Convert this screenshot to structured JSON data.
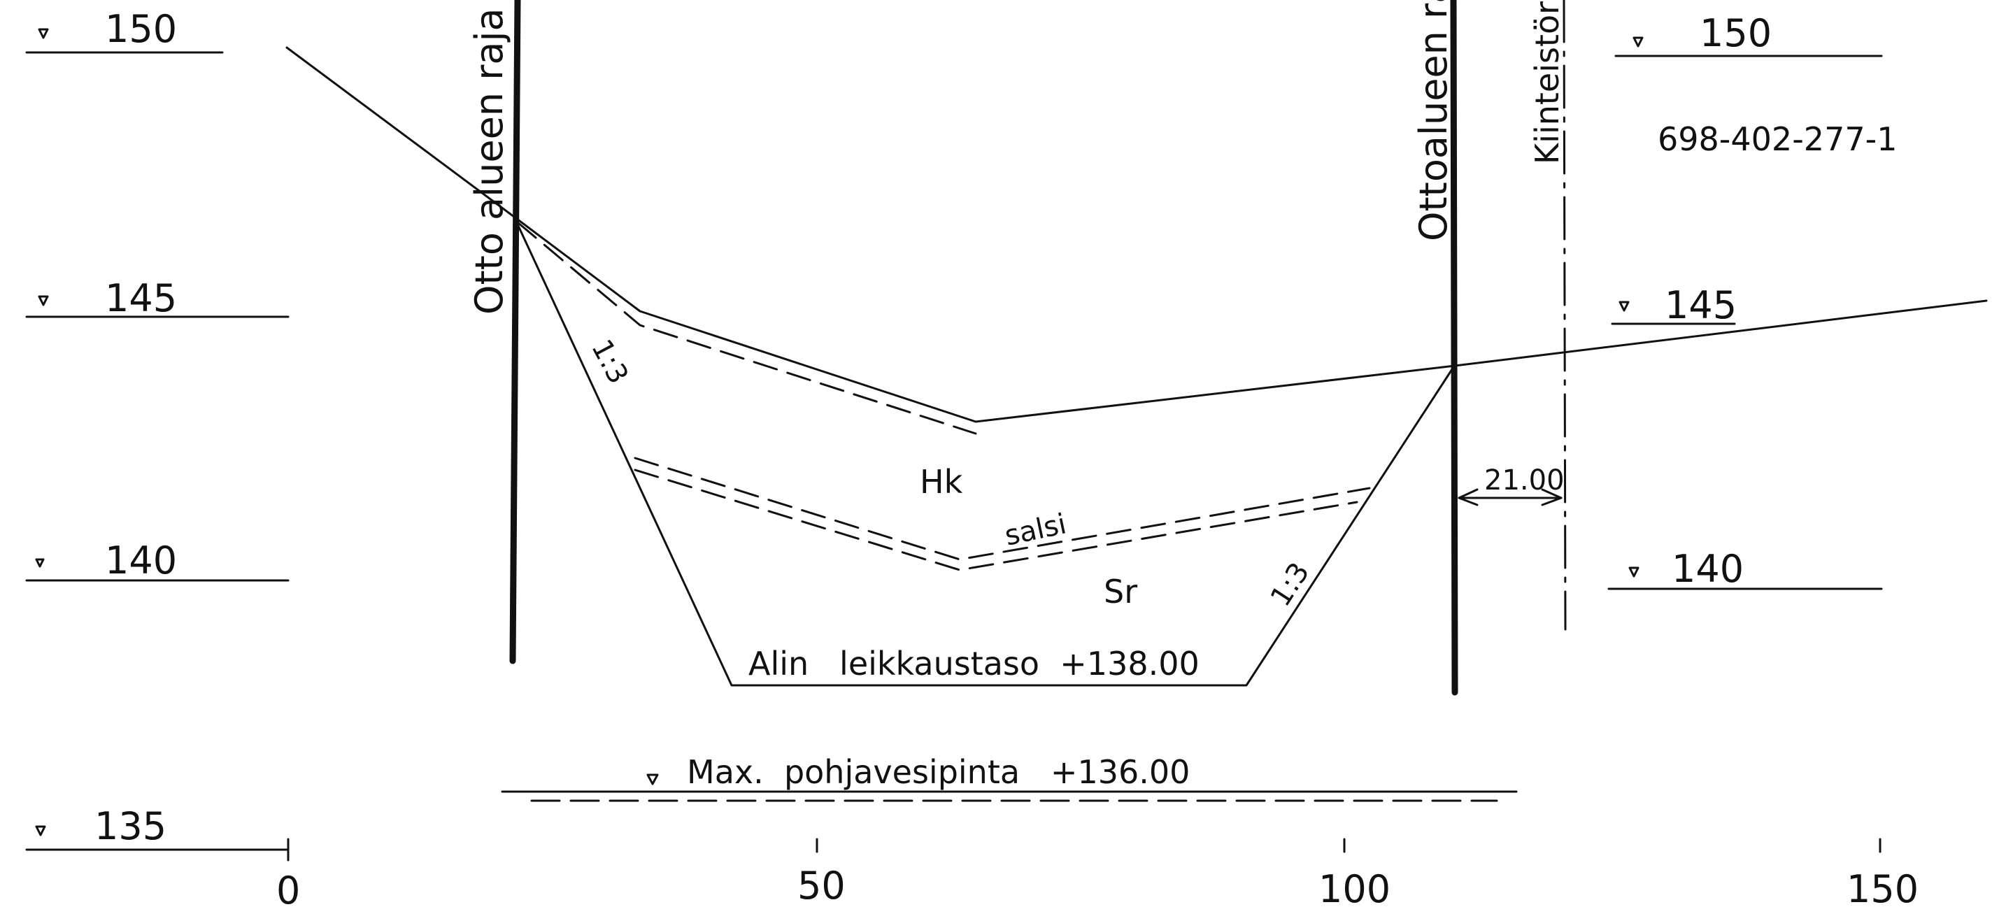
{
  "elevation_labels": {
    "left": [
      "150",
      "145",
      "140",
      "135"
    ],
    "right": [
      "150",
      "145",
      "140"
    ]
  },
  "chainage_labels": [
    "0",
    "50",
    "100",
    "150"
  ],
  "boundary_labels": {
    "left": "Otto alueen raja",
    "right": "Ottoalueen raja",
    "property": "Kiinteistöraja"
  },
  "property_id": "698-402-277-1",
  "slope_left": "1:3",
  "slope_right": "1:3",
  "soil_top": "Hk",
  "soil_boundary": "salsi",
  "soil_bottom": "Sr",
  "cut_level_label": "Alin   leikkaustaso  +138.00",
  "groundwater_label": "Max.  pohjavesipinta   +136.00",
  "offset_label": "21.00"
}
